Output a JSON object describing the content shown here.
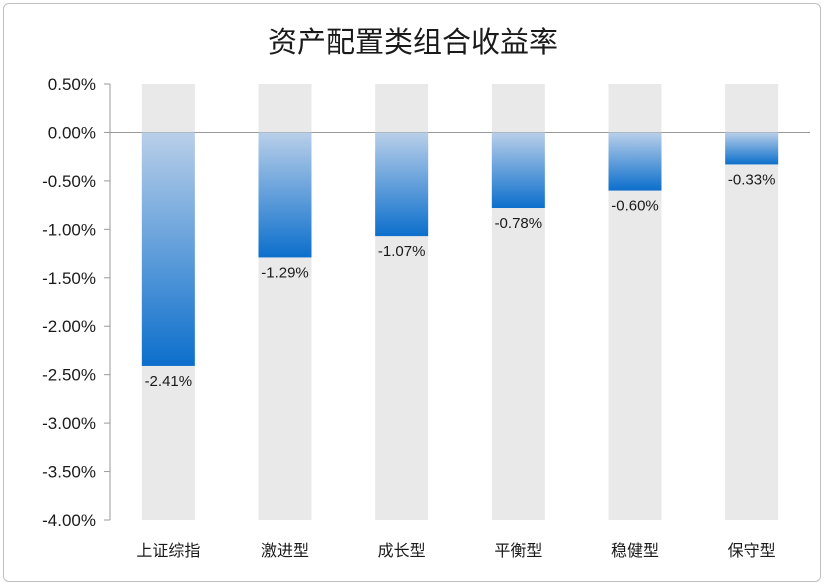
{
  "chart_data": {
    "type": "bar",
    "title": "资产配置类组合收益率",
    "categories": [
      "上证综指",
      "激进型",
      "成长型",
      "平衡型",
      "稳健型",
      "保守型"
    ],
    "values": [
      -2.41,
      -1.29,
      -1.07,
      -0.78,
      -0.6,
      -0.33
    ],
    "data_labels": [
      "-2.41%",
      "-1.29%",
      "-1.07%",
      "-0.78%",
      "-0.60%",
      "-0.33%"
    ],
    "ylim": [
      -4.0,
      0.5
    ],
    "yticks": [
      0.5,
      0.0,
      -0.5,
      -1.0,
      -1.5,
      -2.0,
      -2.5,
      -3.0,
      -3.5,
      -4.0
    ],
    "ytick_labels": [
      "0.50%",
      "0.00%",
      "-0.50%",
      "-1.00%",
      "-1.50%",
      "-2.00%",
      "-2.50%",
      "-3.00%",
      "-3.50%",
      "-4.00%"
    ],
    "xlabel": "",
    "ylabel": "",
    "grid": false,
    "legend": "none",
    "colors": {
      "bar_top": "#b9cfe9",
      "bar_bottom": "#0c6fcc",
      "track": "#e9e9e9",
      "axis": "#9a9a9a"
    }
  }
}
